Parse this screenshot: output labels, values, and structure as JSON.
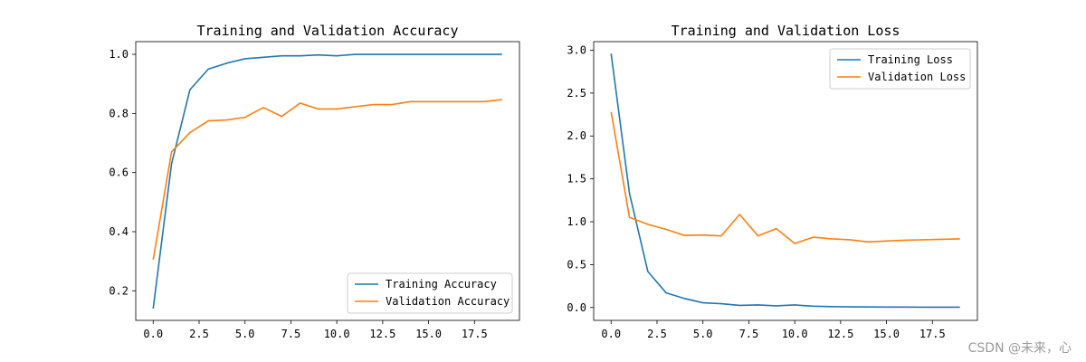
{
  "chart_data": [
    {
      "type": "line",
      "title": "Training and Validation Accuracy",
      "xlabel": "",
      "ylabel": "",
      "xlim": [
        -0.95,
        19.95
      ],
      "ylim": [
        0.1,
        1.043
      ],
      "xticks": [
        0.0,
        2.5,
        5.0,
        7.5,
        10.0,
        12.5,
        15.0,
        17.5
      ],
      "yticks": [
        0.2,
        0.4,
        0.6,
        0.8,
        1.0
      ],
      "xtick_labels": [
        "0.0",
        "2.5",
        "5.0",
        "7.5",
        "10.0",
        "12.5",
        "15.0",
        "17.5"
      ],
      "ytick_labels": [
        "0.2",
        "0.4",
        "0.6",
        "0.8",
        "1.0"
      ],
      "legend_position": "lower-right",
      "x": [
        0,
        1,
        2,
        3,
        4,
        5,
        6,
        7,
        8,
        9,
        10,
        11,
        12,
        13,
        14,
        15,
        16,
        17,
        18,
        19
      ],
      "series": [
        {
          "name": "Training Accuracy",
          "color": "#1f77b4",
          "values": [
            0.14,
            0.63,
            0.88,
            0.95,
            0.97,
            0.985,
            0.99,
            0.995,
            0.995,
            0.998,
            0.995,
            1.0,
            1.0,
            1.0,
            1.0,
            1.0,
            1.0,
            1.0,
            1.0,
            1.0
          ]
        },
        {
          "name": "Validation Accuracy",
          "color": "#ff7f0e",
          "values": [
            0.305,
            0.67,
            0.735,
            0.775,
            0.778,
            0.787,
            0.82,
            0.79,
            0.835,
            0.815,
            0.815,
            0.823,
            0.83,
            0.83,
            0.84,
            0.84,
            0.84,
            0.84,
            0.84,
            0.847
          ]
        }
      ]
    },
    {
      "type": "line",
      "title": "Training and Validation Loss",
      "xlabel": "",
      "ylabel": "",
      "xlim": [
        -0.95,
        19.95
      ],
      "ylim": [
        -0.15,
        3.1
      ],
      "xticks": [
        0.0,
        2.5,
        5.0,
        7.5,
        10.0,
        12.5,
        15.0,
        17.5
      ],
      "yticks": [
        0.0,
        0.5,
        1.0,
        1.5,
        2.0,
        2.5,
        3.0
      ],
      "xtick_labels": [
        "0.0",
        "2.5",
        "5.0",
        "7.5",
        "10.0",
        "12.5",
        "15.0",
        "17.5"
      ],
      "ytick_labels": [
        "0.0",
        "0.5",
        "1.0",
        "1.5",
        "2.0",
        "2.5",
        "3.0"
      ],
      "legend_position": "upper-right",
      "x": [
        0,
        1,
        2,
        3,
        4,
        5,
        6,
        7,
        8,
        9,
        10,
        11,
        12,
        13,
        14,
        15,
        16,
        17,
        18,
        19
      ],
      "series": [
        {
          "name": "Training Loss",
          "color": "#1f77b4",
          "values": [
            2.96,
            1.33,
            0.42,
            0.17,
            0.105,
            0.055,
            0.045,
            0.025,
            0.03,
            0.02,
            0.03,
            0.015,
            0.01,
            0.008,
            0.006,
            0.005,
            0.005,
            0.004,
            0.004,
            0.004
          ]
        },
        {
          "name": "Validation Loss",
          "color": "#ff7f0e",
          "values": [
            2.28,
            1.05,
            0.97,
            0.91,
            0.84,
            0.845,
            0.835,
            1.085,
            0.835,
            0.92,
            0.745,
            0.82,
            0.8,
            0.79,
            0.765,
            0.775,
            0.785,
            0.79,
            0.795,
            0.8
          ]
        }
      ]
    }
  ],
  "watermark": "CSDN @未来，心"
}
